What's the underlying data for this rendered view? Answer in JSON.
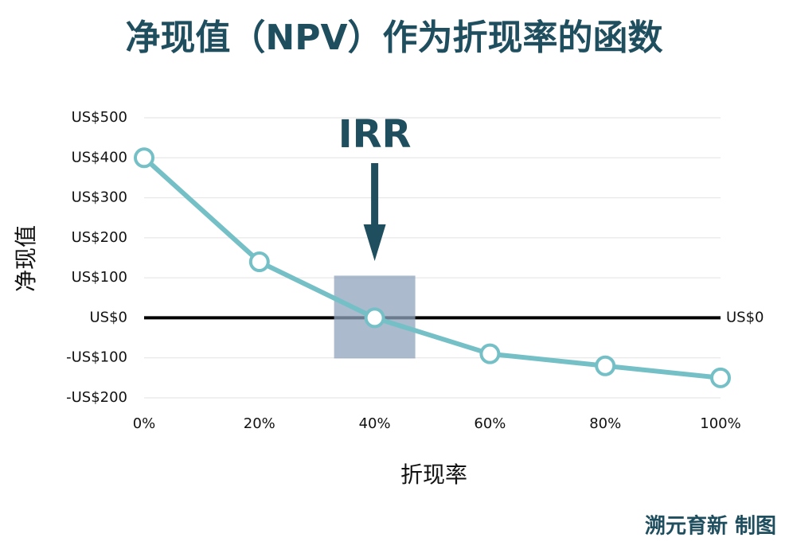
{
  "chart_data": {
    "type": "line",
    "title": "净现值（NPV）作为折现率的函数",
    "x_label": "折现率",
    "y_label": "净现值",
    "annotation": "IRR",
    "zero_label": "US$0",
    "credit": "溯元育新 制图",
    "x": [
      0,
      20,
      40,
      60,
      80,
      100
    ],
    "series": [
      {
        "name": "净现值",
        "color": "#74c0c6",
        "values": [
          400,
          140,
          0,
          -90,
          -120,
          -150
        ]
      }
    ],
    "xlim": [
      0,
      100
    ],
    "xticks": [
      {
        "value": 0,
        "label": "0%"
      },
      {
        "value": 20,
        "label": "20%"
      },
      {
        "value": 40,
        "label": "40%"
      },
      {
        "value": 60,
        "label": "60%"
      },
      {
        "value": 80,
        "label": "80%"
      },
      {
        "value": 100,
        "label": "100%"
      }
    ],
    "ylim": [
      -200,
      500
    ],
    "yticks": [
      {
        "value": -200,
        "label": "-US$200"
      },
      {
        "value": -100,
        "label": "-US$100"
      },
      {
        "value": 0,
        "label": "US$0"
      },
      {
        "value": 100,
        "label": "US$100"
      },
      {
        "value": 200,
        "label": "US$200"
      },
      {
        "value": 300,
        "label": "US$300"
      },
      {
        "value": 400,
        "label": "US$400"
      },
      {
        "value": 500,
        "label": "US$500"
      }
    ],
    "grid": true
  }
}
